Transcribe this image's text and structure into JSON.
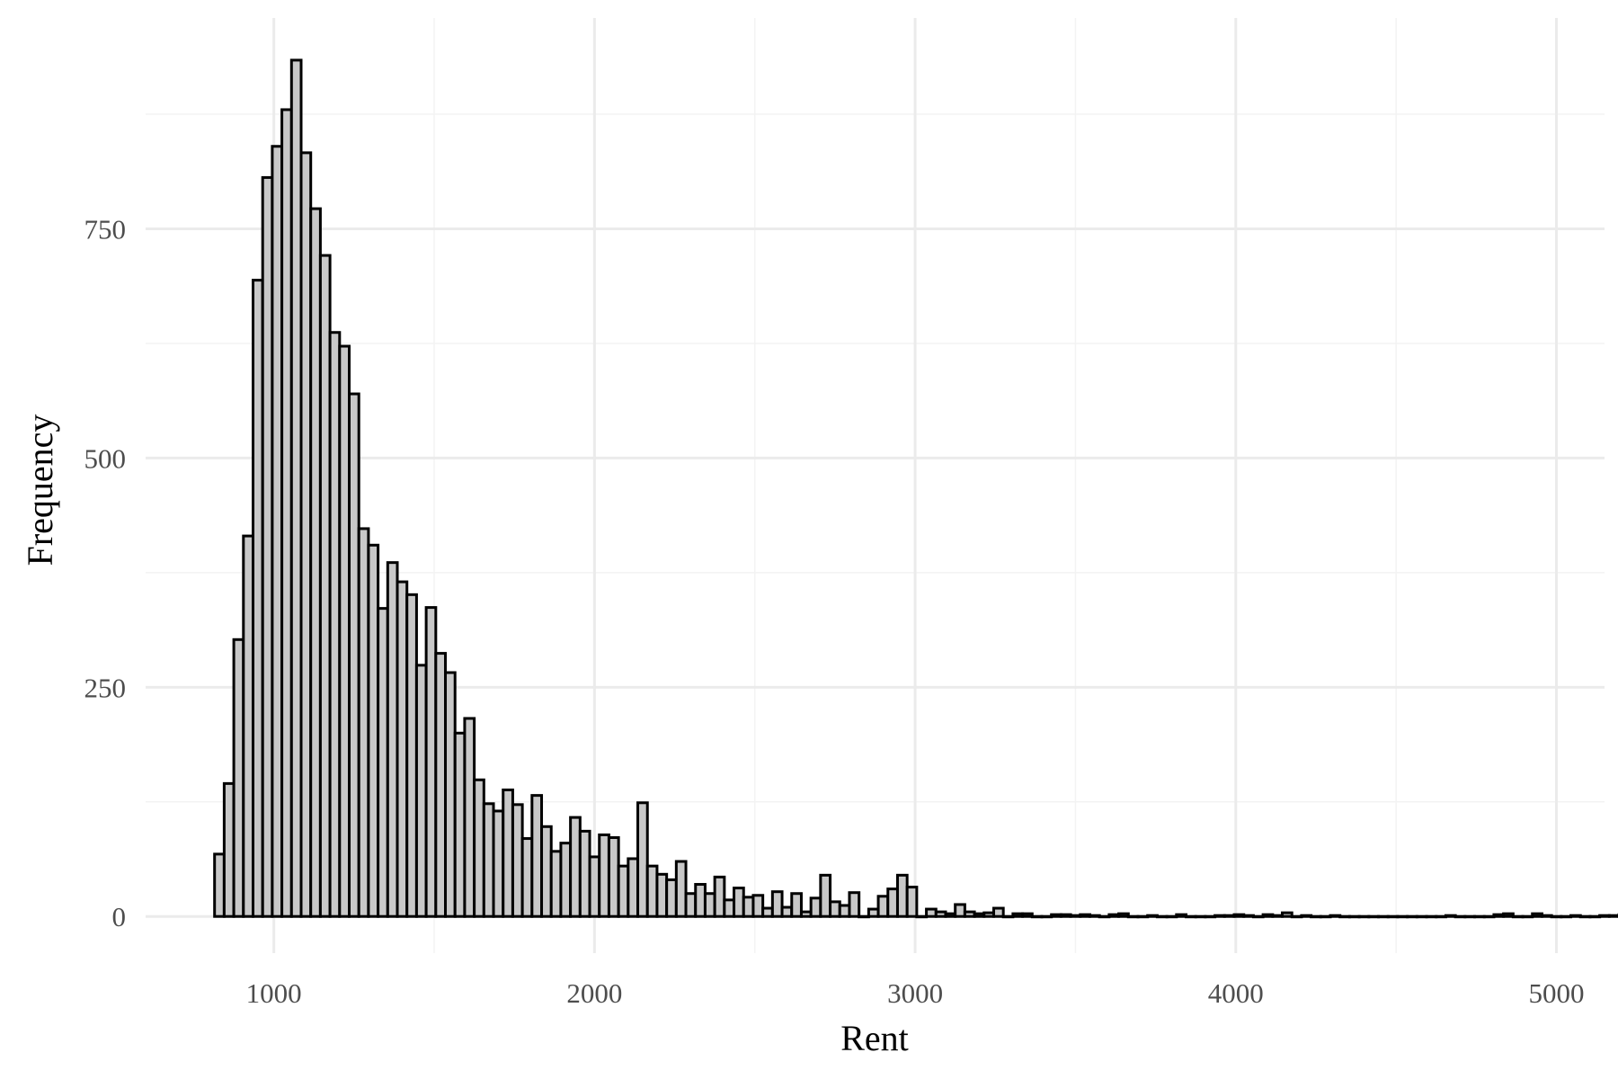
{
  "chart_data": {
    "type": "bar",
    "title": "",
    "xlabel": "Rent",
    "ylabel": "Frequency",
    "bin_width": 30,
    "x_start": 815,
    "xlim": [
      600,
      5150
    ],
    "ylim": [
      -40,
      980
    ],
    "x_ticks": [
      1000,
      2000,
      3000,
      4000,
      5000
    ],
    "y_ticks": [
      0,
      250,
      500,
      750
    ],
    "x_minor_ticks": [
      1500,
      2500,
      3500,
      4500
    ],
    "y_minor_ticks": [
      125,
      375,
      625,
      875
    ],
    "grid": true,
    "legend": "none",
    "colors": {
      "bar_fill": "#c8c8c8",
      "bar_stroke": "#000000",
      "grid_major": "#ebebeb",
      "grid_minor": "#f3f3f3"
    },
    "values": [
      68,
      145,
      302,
      415,
      694,
      806,
      840,
      880,
      934,
      833,
      772,
      721,
      637,
      622,
      570,
      423,
      405,
      336,
      386,
      365,
      351,
      274,
      337,
      287,
      266,
      200,
      216,
      149,
      123,
      115,
      138,
      122,
      85,
      132,
      98,
      71,
      80,
      108,
      93,
      65,
      89,
      86,
      55,
      63,
      124,
      55,
      46,
      40,
      60,
      25,
      35,
      25,
      43,
      18,
      31,
      21,
      23,
      9,
      27,
      10,
      25,
      5,
      20,
      45,
      16,
      12,
      26,
      0,
      8,
      22,
      30,
      45,
      32,
      0,
      8,
      5,
      3,
      13,
      5,
      3,
      4,
      9,
      0,
      3,
      3,
      0,
      0,
      2,
      2,
      1,
      2,
      1,
      0,
      2,
      3,
      0,
      0,
      1,
      0,
      0,
      2,
      0,
      0,
      0,
      1,
      1,
      2,
      1,
      0,
      2,
      1,
      4,
      0,
      1,
      0,
      0,
      1,
      0,
      0,
      0,
      0,
      0,
      0,
      0,
      0,
      0,
      0,
      0,
      1,
      0,
      0,
      0,
      0,
      2,
      3,
      0,
      0,
      3,
      1,
      0,
      0,
      1,
      0,
      0,
      1,
      1,
      2,
      2,
      2
    ]
  }
}
